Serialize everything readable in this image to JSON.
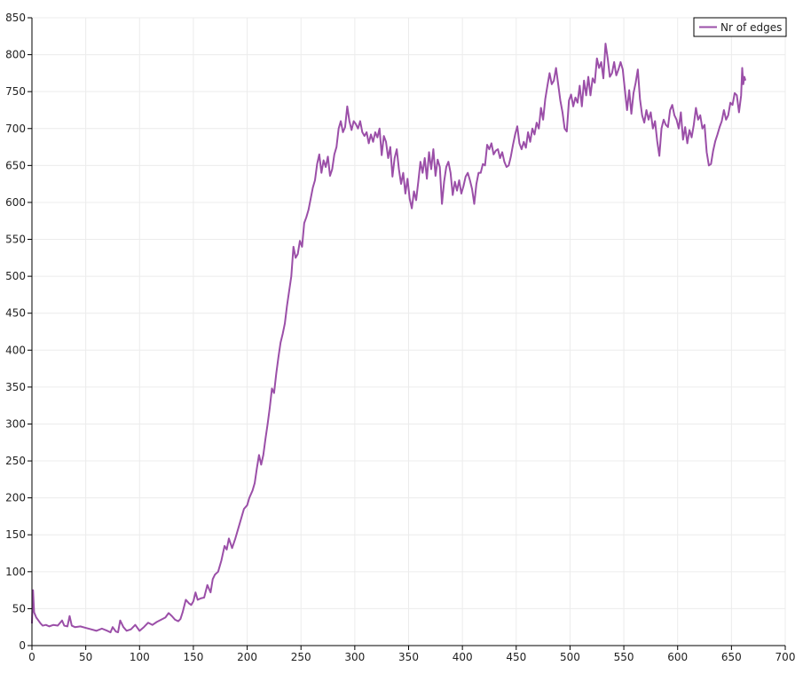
{
  "chart_data": {
    "type": "line",
    "title": "",
    "xlabel": "",
    "ylabel": "",
    "xlim": [
      0,
      700
    ],
    "ylim": [
      0,
      850
    ],
    "x_ticks": [
      0,
      50,
      100,
      150,
      200,
      250,
      300,
      350,
      400,
      450,
      500,
      550,
      600,
      650,
      700
    ],
    "y_ticks": [
      0,
      50,
      100,
      150,
      200,
      250,
      300,
      350,
      400,
      450,
      500,
      550,
      600,
      650,
      700,
      750,
      800,
      850
    ],
    "grid": true,
    "legend_position": "top-right",
    "series": [
      {
        "name": "Nr of edges",
        "color": "#9b4fa8",
        "points": [
          [
            0,
            30
          ],
          [
            1,
            75
          ],
          [
            2,
            45
          ],
          [
            4,
            38
          ],
          [
            6,
            34
          ],
          [
            8,
            30
          ],
          [
            10,
            27
          ],
          [
            13,
            28
          ],
          [
            16,
            26
          ],
          [
            20,
            28
          ],
          [
            24,
            27
          ],
          [
            28,
            34
          ],
          [
            30,
            27
          ],
          [
            33,
            26
          ],
          [
            35,
            40
          ],
          [
            37,
            27
          ],
          [
            40,
            25
          ],
          [
            45,
            26
          ],
          [
            50,
            24
          ],
          [
            55,
            22
          ],
          [
            60,
            20
          ],
          [
            65,
            23
          ],
          [
            70,
            20
          ],
          [
            73,
            18
          ],
          [
            75,
            25
          ],
          [
            78,
            19
          ],
          [
            80,
            18
          ],
          [
            82,
            34
          ],
          [
            85,
            25
          ],
          [
            88,
            20
          ],
          [
            92,
            22
          ],
          [
            96,
            28
          ],
          [
            100,
            20
          ],
          [
            104,
            25
          ],
          [
            108,
            31
          ],
          [
            112,
            28
          ],
          [
            116,
            32
          ],
          [
            120,
            35
          ],
          [
            124,
            38
          ],
          [
            127,
            44
          ],
          [
            130,
            40
          ],
          [
            133,
            35
          ],
          [
            136,
            33
          ],
          [
            138,
            36
          ],
          [
            140,
            45
          ],
          [
            143,
            62
          ],
          [
            146,
            57
          ],
          [
            148,
            55
          ],
          [
            150,
            60
          ],
          [
            152,
            72
          ],
          [
            154,
            62
          ],
          [
            157,
            64
          ],
          [
            160,
            65
          ],
          [
            163,
            82
          ],
          [
            166,
            72
          ],
          [
            168,
            90
          ],
          [
            170,
            96
          ],
          [
            173,
            100
          ],
          [
            176,
            115
          ],
          [
            179,
            135
          ],
          [
            181,
            130
          ],
          [
            183,
            145
          ],
          [
            186,
            132
          ],
          [
            189,
            145
          ],
          [
            192,
            160
          ],
          [
            195,
            175
          ],
          [
            197,
            185
          ],
          [
            200,
            190
          ],
          [
            202,
            200
          ],
          [
            205,
            210
          ],
          [
            207,
            220
          ],
          [
            209,
            240
          ],
          [
            211,
            258
          ],
          [
            213,
            245
          ],
          [
            215,
            258
          ],
          [
            217,
            280
          ],
          [
            219,
            300
          ],
          [
            221,
            322
          ],
          [
            223,
            348
          ],
          [
            225,
            342
          ],
          [
            227,
            368
          ],
          [
            229,
            390
          ],
          [
            231,
            410
          ],
          [
            233,
            422
          ],
          [
            235,
            436
          ],
          [
            237,
            460
          ],
          [
            239,
            480
          ],
          [
            241,
            500
          ],
          [
            243,
            540
          ],
          [
            245,
            525
          ],
          [
            247,
            530
          ],
          [
            249,
            548
          ],
          [
            251,
            540
          ],
          [
            253,
            572
          ],
          [
            255,
            580
          ],
          [
            257,
            590
          ],
          [
            259,
            605
          ],
          [
            261,
            620
          ],
          [
            263,
            630
          ],
          [
            265,
            652
          ],
          [
            267,
            665
          ],
          [
            269,
            640
          ],
          [
            271,
            657
          ],
          [
            273,
            648
          ],
          [
            275,
            662
          ],
          [
            277,
            636
          ],
          [
            279,
            645
          ],
          [
            281,
            665
          ],
          [
            283,
            675
          ],
          [
            285,
            700
          ],
          [
            287,
            710
          ],
          [
            289,
            695
          ],
          [
            291,
            702
          ],
          [
            293,
            730
          ],
          [
            295,
            710
          ],
          [
            297,
            698
          ],
          [
            299,
            710
          ],
          [
            301,
            706
          ],
          [
            303,
            700
          ],
          [
            305,
            710
          ],
          [
            307,
            695
          ],
          [
            309,
            690
          ],
          [
            311,
            695
          ],
          [
            313,
            680
          ],
          [
            315,
            692
          ],
          [
            317,
            682
          ],
          [
            319,
            695
          ],
          [
            321,
            688
          ],
          [
            323,
            700
          ],
          [
            325,
            664
          ],
          [
            327,
            690
          ],
          [
            329,
            682
          ],
          [
            331,
            660
          ],
          [
            333,
            675
          ],
          [
            335,
            635
          ],
          [
            337,
            660
          ],
          [
            339,
            672
          ],
          [
            341,
            645
          ],
          [
            343,
            625
          ],
          [
            345,
            640
          ],
          [
            347,
            612
          ],
          [
            349,
            632
          ],
          [
            351,
            605
          ],
          [
            353,
            592
          ],
          [
            355,
            615
          ],
          [
            357,
            603
          ],
          [
            359,
            628
          ],
          [
            361,
            655
          ],
          [
            363,
            640
          ],
          [
            365,
            660
          ],
          [
            367,
            632
          ],
          [
            369,
            668
          ],
          [
            371,
            645
          ],
          [
            373,
            672
          ],
          [
            375,
            636
          ],
          [
            377,
            658
          ],
          [
            379,
            648
          ],
          [
            381,
            598
          ],
          [
            383,
            628
          ],
          [
            385,
            648
          ],
          [
            387,
            655
          ],
          [
            389,
            640
          ],
          [
            391,
            610
          ],
          [
            393,
            628
          ],
          [
            395,
            616
          ],
          [
            397,
            630
          ],
          [
            399,
            612
          ],
          [
            401,
            622
          ],
          [
            403,
            635
          ],
          [
            405,
            640
          ],
          [
            407,
            630
          ],
          [
            409,
            618
          ],
          [
            411,
            598
          ],
          [
            413,
            625
          ],
          [
            415,
            640
          ],
          [
            417,
            640
          ],
          [
            419,
            652
          ],
          [
            421,
            650
          ],
          [
            423,
            678
          ],
          [
            425,
            672
          ],
          [
            427,
            680
          ],
          [
            429,
            665
          ],
          [
            431,
            670
          ],
          [
            433,
            672
          ],
          [
            435,
            660
          ],
          [
            437,
            668
          ],
          [
            439,
            655
          ],
          [
            441,
            648
          ],
          [
            443,
            650
          ],
          [
            445,
            662
          ],
          [
            447,
            678
          ],
          [
            449,
            692
          ],
          [
            451,
            703
          ],
          [
            453,
            680
          ],
          [
            455,
            672
          ],
          [
            457,
            682
          ],
          [
            459,
            674
          ],
          [
            461,
            695
          ],
          [
            463,
            682
          ],
          [
            465,
            700
          ],
          [
            467,
            692
          ],
          [
            469,
            708
          ],
          [
            471,
            700
          ],
          [
            473,
            728
          ],
          [
            475,
            712
          ],
          [
            477,
            740
          ],
          [
            479,
            758
          ],
          [
            481,
            775
          ],
          [
            483,
            760
          ],
          [
            485,
            765
          ],
          [
            487,
            782
          ],
          [
            489,
            760
          ],
          [
            491,
            738
          ],
          [
            493,
            722
          ],
          [
            495,
            700
          ],
          [
            497,
            696
          ],
          [
            499,
            738
          ],
          [
            501,
            746
          ],
          [
            503,
            730
          ],
          [
            505,
            742
          ],
          [
            507,
            735
          ],
          [
            509,
            758
          ],
          [
            511,
            730
          ],
          [
            513,
            765
          ],
          [
            515,
            745
          ],
          [
            517,
            770
          ],
          [
            519,
            745
          ],
          [
            521,
            768
          ],
          [
            523,
            762
          ],
          [
            525,
            795
          ],
          [
            527,
            782
          ],
          [
            529,
            790
          ],
          [
            531,
            768
          ],
          [
            533,
            815
          ],
          [
            535,
            795
          ],
          [
            537,
            770
          ],
          [
            539,
            775
          ],
          [
            541,
            790
          ],
          [
            543,
            772
          ],
          [
            545,
            780
          ],
          [
            547,
            790
          ],
          [
            549,
            780
          ],
          [
            551,
            752
          ],
          [
            553,
            725
          ],
          [
            555,
            752
          ],
          [
            557,
            720
          ],
          [
            559,
            748
          ],
          [
            561,
            762
          ],
          [
            563,
            780
          ],
          [
            565,
            740
          ],
          [
            567,
            718
          ],
          [
            569,
            708
          ],
          [
            571,
            725
          ],
          [
            573,
            712
          ],
          [
            575,
            722
          ],
          [
            577,
            700
          ],
          [
            579,
            710
          ],
          [
            581,
            683
          ],
          [
            583,
            663
          ],
          [
            585,
            700
          ],
          [
            587,
            712
          ],
          [
            589,
            705
          ],
          [
            591,
            702
          ],
          [
            593,
            725
          ],
          [
            595,
            732
          ],
          [
            597,
            718
          ],
          [
            599,
            712
          ],
          [
            601,
            700
          ],
          [
            603,
            722
          ],
          [
            605,
            685
          ],
          [
            607,
            702
          ],
          [
            609,
            680
          ],
          [
            611,
            698
          ],
          [
            613,
            688
          ],
          [
            615,
            705
          ],
          [
            617,
            728
          ],
          [
            619,
            712
          ],
          [
            621,
            718
          ],
          [
            623,
            700
          ],
          [
            625,
            705
          ],
          [
            627,
            668
          ],
          [
            629,
            650
          ],
          [
            631,
            652
          ],
          [
            633,
            670
          ],
          [
            635,
            683
          ],
          [
            637,
            692
          ],
          [
            639,
            702
          ],
          [
            641,
            710
          ],
          [
            643,
            725
          ],
          [
            645,
            712
          ],
          [
            647,
            718
          ],
          [
            649,
            735
          ],
          [
            651,
            732
          ],
          [
            653,
            748
          ],
          [
            655,
            745
          ],
          [
            657,
            722
          ],
          [
            659,
            745
          ],
          [
            660,
            782
          ],
          [
            661,
            760
          ],
          [
            662,
            770
          ],
          [
            663,
            765
          ]
        ]
      }
    ]
  }
}
